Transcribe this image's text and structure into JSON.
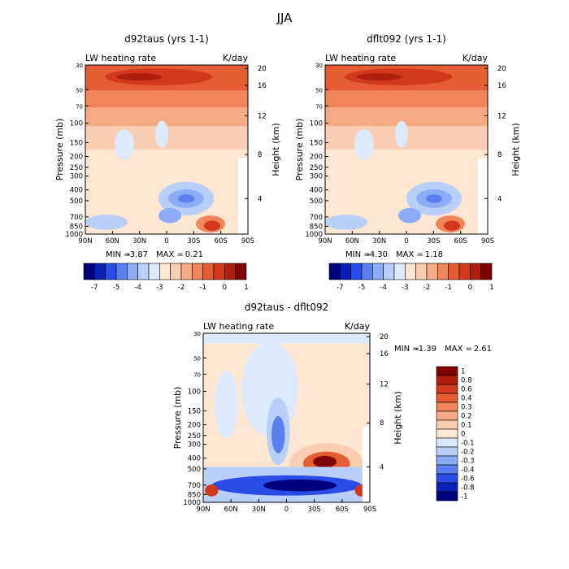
{
  "page_title": "JJA",
  "chart_data": [
    {
      "type": "heatmap",
      "title": "d92taus (yrs 1-1)",
      "field_label": "LW heating rate",
      "units": "K/day",
      "ylabel": "Pressure (mb)",
      "y2label": "Height (km)",
      "x_ticks": [
        "90N",
        "60N",
        "30N",
        "0",
        "30S",
        "60S",
        "90S"
      ],
      "y_ticks": [
        "30",
        "50",
        "70",
        "100",
        "150",
        "200",
        "250",
        "300",
        "400",
        "500",
        "700",
        "850",
        "1000"
      ],
      "y2_ticks": [
        "20",
        "16",
        "12",
        "8",
        "4"
      ],
      "min_label": "MIN =",
      "min": "-3.87",
      "max_label": "MAX =",
      "max": "0.21",
      "colorbar_labels": [
        "-7",
        "-5",
        "-4",
        "-3",
        "-2",
        "-1",
        "0",
        "1"
      ],
      "colors": [
        "#00007f",
        "#0a1fb8",
        "#2a4ce6",
        "#5a80f0",
        "#8cadf5",
        "#b9cff8",
        "#dce8fb",
        "#fde6d2",
        "#fbcdb0",
        "#f6aa84",
        "#f0855a",
        "#e55d33",
        "#d2381c",
        "#b01e0e",
        "#7f0000"
      ]
    },
    {
      "type": "heatmap",
      "title": "dflt092 (yrs 1-1)",
      "field_label": "LW heating rate",
      "units": "K/day",
      "ylabel": "Pressure (mb)",
      "y2label": "Height (km)",
      "x_ticks": [
        "90N",
        "60N",
        "30N",
        "0",
        "30S",
        "60S",
        "90S"
      ],
      "y_ticks": [
        "30",
        "50",
        "70",
        "100",
        "150",
        "200",
        "250",
        "300",
        "400",
        "500",
        "700",
        "850",
        "1000"
      ],
      "y2_ticks": [
        "20",
        "16",
        "12",
        "8",
        "4"
      ],
      "min_label": "MIN =",
      "min": "-4.30",
      "max_label": "MAX =",
      "max": "1.18",
      "colorbar_labels": [
        "-7",
        "-5",
        "-4",
        "-3",
        "-2",
        "-1",
        "0",
        "1"
      ]
    },
    {
      "type": "heatmap",
      "title": "d92taus - dflt092",
      "field_label": "LW heating rate",
      "units": "K/day",
      "ylabel": "Pressure (mb)",
      "y2label": "Height (km)",
      "x_ticks": [
        "90N",
        "60N",
        "30N",
        "0",
        "30S",
        "60S",
        "90S"
      ],
      "y_ticks": [
        "30",
        "50",
        "70",
        "100",
        "150",
        "200",
        "250",
        "300",
        "400",
        "500",
        "700",
        "850",
        "1000"
      ],
      "y2_ticks": [
        "20",
        "16",
        "12",
        "8",
        "4"
      ],
      "min_label": "MIN =",
      "min": "-1.39",
      "max_label": "MAX =",
      "max": "2.61",
      "colorbar_labels": [
        "1",
        "0.8",
        "0.6",
        "0.4",
        "0.3",
        "0.2",
        "0.1",
        "0",
        "-0.1",
        "-0.2",
        "-0.3",
        "-0.4",
        "-0.6",
        "-0.8",
        "-1"
      ],
      "colors": [
        "#7f0000",
        "#b01e0e",
        "#d2381c",
        "#e55d33",
        "#f0855a",
        "#f6aa84",
        "#fbcdb0",
        "#fde6d2",
        "#dce8fb",
        "#b9cff8",
        "#8cadf5",
        "#5a80f0",
        "#2a4ce6",
        "#0a1fb8",
        "#00007f"
      ]
    }
  ]
}
